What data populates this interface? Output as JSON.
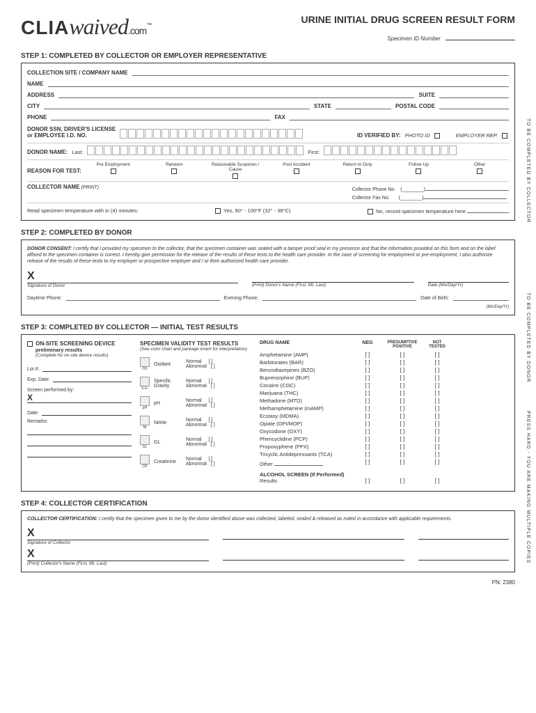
{
  "header": {
    "logo_clia": "CLIA",
    "logo_waived": "waived",
    "logo_com": ".com",
    "logo_tm": "™",
    "form_title": "URINE INITIAL DRUG SCREEN RESULT FORM",
    "specimen_id_label": "Specimen ID Number"
  },
  "step1": {
    "title": "STEP 1: COMPLETED BY COLLECTOR OR EMPLOYER REPRESENTATIVE",
    "collection_site": "COLLECTION SITE / COMPANY NAME",
    "name": "NAME",
    "address": "ADDRESS",
    "city": "CITY",
    "suite": "SUITE",
    "state": "STATE",
    "postal": "POSTAL CODE",
    "phone": "PHONE",
    "fax": "FAX",
    "donor_ssn": "DONOR SSN, DRIVER'S LICENSE\nor EMPLOYEE I.D. NO.",
    "id_verified": "ID VERIFIED BY:",
    "photo_id": "PHOTO ID",
    "employer_rep": "EMPLOYER REP.",
    "donor_name": "DONOR NAME:",
    "last": "Last:",
    "first": "First:",
    "reason_label": "REASON FOR TEST:",
    "reasons": [
      "Pre Employment",
      "Random",
      "Reasonable Suspicion / Cause",
      "Post Accident",
      "Return to Duty",
      "Follow Up",
      "Other"
    ],
    "collector_name": "COLLECTOR NAME",
    "print": "(PRINT)",
    "collector_phone": "Collector Phone No.",
    "collector_fax": "Collector Fax No.",
    "temp_label": "Read specimen temperature with in (4) minutes:",
    "temp_yes": "Yes, 90° - 100°F (32° - 38°C)",
    "temp_no": "No, record specimen temperature here"
  },
  "step2": {
    "title": "STEP 2: COMPLETED BY DONOR",
    "consent_label": "DONOR CONSENT:",
    "consent_text": "I certify that I provided my specimen to the collector, that the specimen container was sealed with a tamper proof seal in my presence and that the information provided on this form and on the label affixed to the specimen container is correct. I hereby give permission for the release of the results of these tests to the health care provider. In the case of screening for employment or pre-employment, I also authorize release of the results of these tests to my employer or prospective employer and / or their authorized health care provider.",
    "sig_donor": "Signature of Donor",
    "donor_print": "(Print) Donor's Name (First, MI, Last)",
    "date": "Date (Mo/Day/Yr)",
    "daytime": "Daytime Phone:",
    "evening": "Evening Phone:",
    "dob": "Date of Birth:",
    "dob_fmt": "(Mo/Day/Yr)"
  },
  "step3": {
    "title": "STEP 3: COMPLETED BY COLLECTOR — INITIAL TEST RESULTS",
    "device_title": "ON-SITE SCREENING DEVICE",
    "device_sub1": "preliminary results",
    "device_sub2": "(Complete for on-site device results)",
    "lot": "Lot #:",
    "exp": "Exp. Date:",
    "screen_by": "Screen performed by:",
    "date_label": "Date:",
    "remarks": "Remarks:",
    "validity_title": "SPECIMEN VALIDITY TEST RESULTS",
    "validity_sub": "(See color chart and package insert for interpretation)",
    "validity_tests": [
      {
        "code": "OX",
        "name": "Oxidant"
      },
      {
        "code": "S.G.",
        "name": "Specific\nGravity"
      },
      {
        "code": "pH",
        "name": "pH"
      },
      {
        "code": "NI",
        "name": "Nitrite"
      },
      {
        "code": "GL",
        "name": "GL"
      },
      {
        "code": "CR",
        "name": "Creatinine"
      }
    ],
    "normal": "Normal",
    "abnormal": "Abnormal",
    "drug_header": "DRUG NAME",
    "col_neg": "NEG",
    "col_pos": "PRESUMPTIVE\nPOSITIVE",
    "col_not": "NOT\nTESTED",
    "drugs": [
      "Amphetamine (AMP)",
      "Barbiturates (BAR)",
      "Benzodiazepines (BZO)",
      "Buprenorphine (BUP)",
      "Cocaine (COC)",
      "Marijuana (THC)",
      "Methadone (MTD)",
      "Methamphetamine (mAMP)",
      "Ecstasy (MDMA)",
      "Opiate (OPI/MOP)",
      "Oxycodone (OXY)",
      "Phencyclidine (PCP)",
      "Propoxyphene (PPX)",
      "Tricyclic Antidepressants  (TCA)"
    ],
    "other_drug": "Other",
    "alcohol_title": "ALCOHOL SCREEN (If Performed)",
    "alcohol_results": "Results"
  },
  "step4": {
    "title": "STEP 4: COLLECTOR CERTIFICATION",
    "cert_label": "COLLECTOR CERTIFICATION:",
    "cert_text": "I certify that the specimen given to me by the donor identified above was collected, labeled, sealed & released as noted in accordance with applicable requirements.",
    "sig_collector": "Signature of Collector",
    "print_collector": "(Print) Collector's Name (First, MI, Last)"
  },
  "vertical": {
    "v1": "TO BE COMPLETED BY COLLECTOR",
    "v2": "TO BE COMPLETED BY DONOR",
    "v3": "PRESS HARD - YOU ARE MAKING MULTIPLE COPIES"
  },
  "footer": {
    "pn": "PN: 2380"
  }
}
